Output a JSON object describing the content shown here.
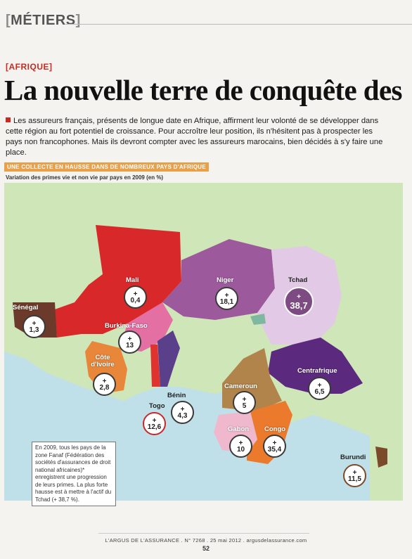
{
  "header": {
    "section_bracket_open": "[",
    "section": "MÉTIERS",
    "section_bracket_close": "]",
    "kicker": "[AFRIQUE]",
    "headline": "La nouvelle terre de conquête des",
    "lead": "Les assureurs français, présents de longue date en Afrique, affirment leur volonté de se développer dans cette région au fort potentiel de croissance. Pour accroître leur position, ils n'hésitent pas à prospecter les pays non francophones. Mais ils devront compter avec les assureurs marocains, bien décidés à s'y faire une place."
  },
  "map": {
    "tag": "UNE COLLECTE EN HAUSSE DANS DE NOMBREUX PAYS D'AFRIQUE",
    "subtitle": "Variation des primes vie et non vie par pays en 2009 (en %)",
    "countries": [
      {
        "name": "Sénégal",
        "value": "1,3",
        "color": "#6b3a2a"
      },
      {
        "name": "Mali",
        "value": "0,4",
        "color": "#d9282a"
      },
      {
        "name": "Niger",
        "value": "18,1",
        "color": "#9c5a9c"
      },
      {
        "name": "Tchad",
        "value": "38,7",
        "color": "#e2c9e6"
      },
      {
        "name": "Burkina-Faso",
        "value": "13",
        "color": "#e36fa3"
      },
      {
        "name": "Côte d'Ivoire",
        "value": "2,8",
        "color": "#e8863a"
      },
      {
        "name": "Bénin",
        "value": "4,3",
        "color": "#5a3f8a"
      },
      {
        "name": "Togo",
        "value": "12,6",
        "color": "#e0322e"
      },
      {
        "name": "Centrafrique",
        "value": "6,5",
        "color": "#5b2a7e"
      },
      {
        "name": "Cameroun",
        "value": "5",
        "color": "#b0844a"
      },
      {
        "name": "Gabon",
        "value": "10",
        "color": "#f0b8cc"
      },
      {
        "name": "Congo",
        "value": "35,4",
        "color": "#ec7a2c"
      },
      {
        "name": "Burundi",
        "value": "11,5",
        "color": "#7a4a2a"
      }
    ],
    "plus_sign": "+",
    "note": "En 2009, tous les pays de la zone Fanaf (Fédération des sociétés d'assurances de droit national africaines)* enregistrent une progression de leurs primes. La plus forte hausse est à mettre à l'actif du Tchad (+ 38,7 %)."
  },
  "footer": {
    "line": "L'ARGUS DE L'ASSURANCE . N° 7268 . 25 mai 2012 . argusdelassurance.com",
    "page": "52"
  }
}
